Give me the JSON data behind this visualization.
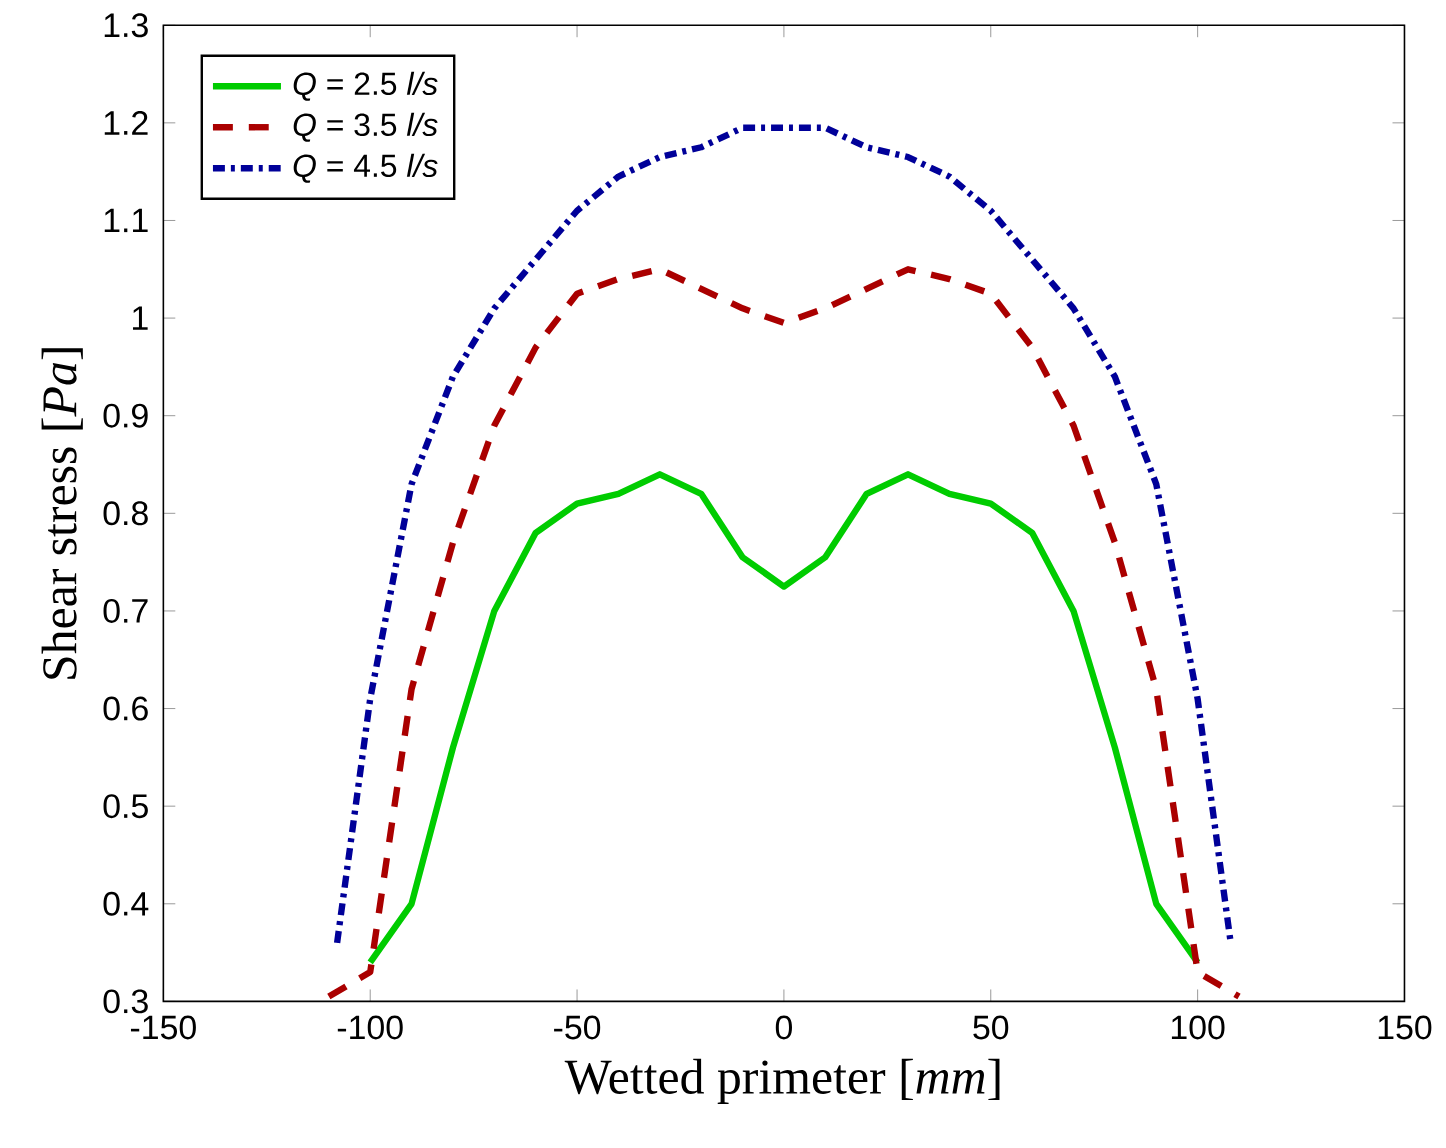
{
  "chart_data": {
    "type": "line",
    "xlabel": "Wetted primeter [*mm*]",
    "ylabel": "Shear stress [*Pa*]",
    "xlim": [
      -150,
      150
    ],
    "xticks": [
      -150,
      -100,
      -50,
      0,
      50,
      100,
      150
    ],
    "ylim": [
      0.3,
      1.3
    ],
    "yticks": [
      0.3,
      0.4,
      0.5,
      0.6,
      0.7,
      0.8,
      0.9,
      1,
      1.1,
      1.2,
      1.3
    ],
    "grid": false,
    "legend": "top left",
    "series": [
      {
        "name": "*Q* = 2.5 *l/s*",
        "color": "#00cc00",
        "line_style": "solid",
        "x": [
          -100,
          -90,
          -80,
          -70,
          -60,
          -50,
          -40,
          -30,
          -20,
          -10,
          0,
          10,
          20,
          30,
          40,
          50,
          60,
          70,
          80,
          90,
          100
        ],
        "values": [
          0.34,
          0.4,
          0.56,
          0.7,
          0.78,
          0.81,
          0.82,
          0.84,
          0.82,
          0.755,
          0.725,
          0.755,
          0.82,
          0.84,
          0.82,
          0.81,
          0.78,
          0.7,
          0.56,
          0.4,
          0.34
        ]
      },
      {
        "name": "*Q* = 3.5 *l/s*",
        "color": "#aa0000",
        "line_style": "dashed",
        "x": [
          -110,
          -100,
          -90,
          -80,
          -70,
          -60,
          -50,
          -40,
          -30,
          -20,
          -10,
          0,
          10,
          20,
          30,
          40,
          50,
          60,
          70,
          80,
          90,
          100,
          110
        ],
        "values": [
          0.305,
          0.33,
          0.62,
          0.77,
          0.89,
          0.97,
          1.025,
          1.04,
          1.05,
          1.03,
          1.01,
          0.995,
          1.01,
          1.03,
          1.05,
          1.04,
          1.025,
          0.97,
          0.89,
          0.77,
          0.62,
          0.33,
          0.305
        ]
      },
      {
        "name": "*Q* = 4.5 *l/s*",
        "color": "#000099",
        "line_style": "dashdot",
        "x": [
          -108,
          -100,
          -90,
          -80,
          -70,
          -60,
          -50,
          -40,
          -30,
          -20,
          -10,
          0,
          10,
          20,
          30,
          40,
          50,
          60,
          70,
          80,
          90,
          100,
          108
        ],
        "values": [
          0.36,
          0.61,
          0.83,
          0.94,
          1.01,
          1.06,
          1.11,
          1.145,
          1.165,
          1.175,
          1.195,
          1.195,
          1.195,
          1.175,
          1.165,
          1.145,
          1.11,
          1.06,
          1.01,
          0.94,
          0.83,
          0.61,
          0.36
        ]
      }
    ]
  }
}
